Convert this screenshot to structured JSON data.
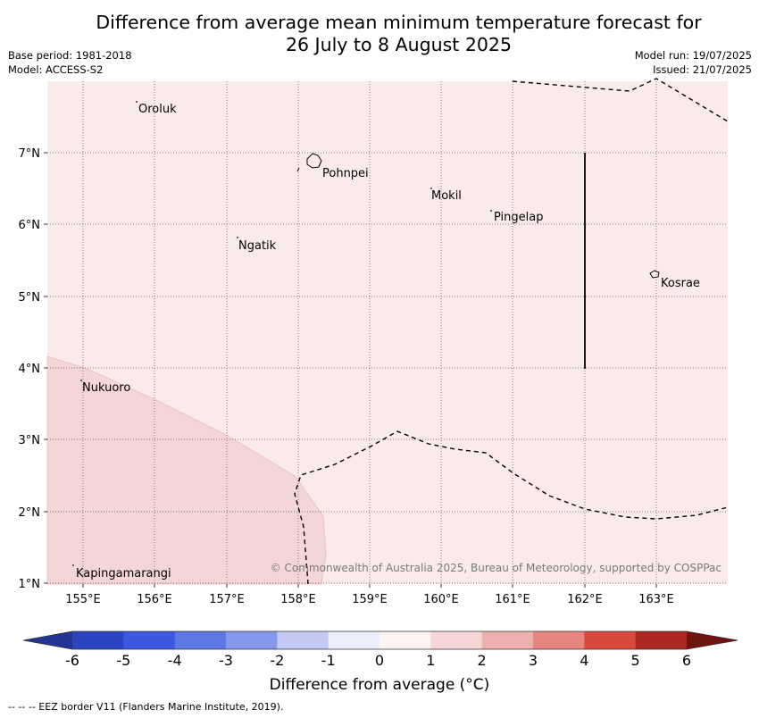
{
  "header": {
    "title_line1": "Difference from average mean minimum temperature forecast for",
    "title_line2": "26 July to 8 August 2025",
    "base_period": "Base period: 1981-2018",
    "model": "Model: ACCESS-S2",
    "model_run": "Model run: 19/07/2025",
    "issued": "Issued: 21/07/2025"
  },
  "map": {
    "lon_ticks": [
      "155°E",
      "156°E",
      "157°E",
      "158°E",
      "159°E",
      "160°E",
      "161°E",
      "162°E",
      "163°E"
    ],
    "lat_ticks": [
      "7°N",
      "6°N",
      "5°N",
      "4°N",
      "3°N",
      "2°N",
      "1°N"
    ],
    "places": [
      {
        "name": "Oroluk"
      },
      {
        "name": "Pohnpei"
      },
      {
        "name": "Mokil"
      },
      {
        "name": "Pingelap"
      },
      {
        "name": "Ngatik"
      },
      {
        "name": "Kosrae"
      },
      {
        "name": "Nukuoro"
      },
      {
        "name": "Kapingamarangi"
      }
    ],
    "copyright": "© Commonwealth of Australia 2025, Bureau of Meteorology, supported by COSPPac",
    "colors": {
      "bin_0_1": "#fbeaea",
      "bin_1_2": "#f5d6d6"
    }
  },
  "colorbar": {
    "label": "Difference from average (°C)",
    "ticks": [
      "-6",
      "-5",
      "-4",
      "-3",
      "-2",
      "-1",
      "0",
      "1",
      "2",
      "3",
      "4",
      "5",
      "6"
    ],
    "colors": [
      "#253494",
      "#2b45c0",
      "#3a59e0",
      "#5d77e3",
      "#8598ea",
      "#c2c9f2",
      "#eceefc",
      "#fdf3f1",
      "#f5d5d5",
      "#eeb0ae",
      "#e6857f",
      "#d94a3e",
      "#a9281f",
      "#6e1410"
    ]
  },
  "footer": {
    "eez_note": "--  --  -- EEZ border V11 (Flanders Marine Institute, 2019)."
  }
}
